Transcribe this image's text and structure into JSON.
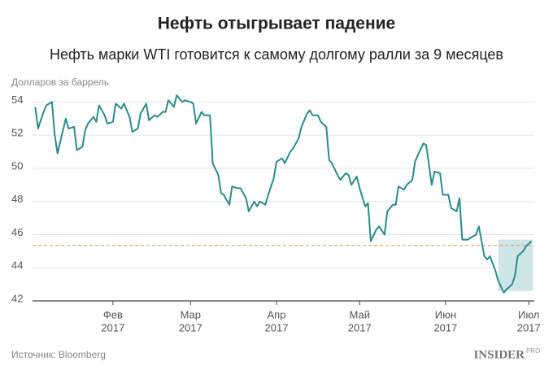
{
  "chart_data": {
    "type": "line",
    "title": "Нефть отыгрывает падение",
    "subtitle": "Нефть марки WTI готовится к самому долгому ралли за 9 месяцев",
    "y_axis_label": "Долларов за баррель",
    "source": "Источник: Bloomberg",
    "logo": {
      "name": "INSIDER",
      "suffix": "PRO"
    },
    "x": [
      4,
      5,
      7,
      8,
      10,
      11,
      12,
      14,
      15,
      16,
      18,
      19,
      21,
      22,
      23,
      25,
      26,
      27,
      29,
      30,
      32,
      33,
      35,
      36,
      38,
      39,
      41,
      42,
      44,
      45,
      47,
      48,
      50,
      51,
      52,
      54,
      55,
      57,
      58,
      60,
      61,
      62,
      64,
      65,
      67,
      68,
      70,
      71,
      72,
      74,
      75,
      77,
      78,
      80,
      81,
      83,
      84,
      85,
      87,
      88,
      90,
      91,
      93,
      94,
      96,
      97,
      99,
      100,
      102,
      103,
      104,
      106,
      107,
      109,
      110,
      111,
      113,
      114,
      116,
      117,
      118,
      120,
      121,
      123,
      124,
      125,
      127,
      128,
      130,
      131,
      133,
      134,
      135,
      137,
      138,
      140,
      141,
      142,
      144,
      145,
      147,
      148,
      150,
      151,
      153,
      154,
      156,
      157,
      158,
      160,
      161,
      163,
      164,
      166,
      167,
      168,
      170,
      171,
      173,
      174,
      176,
      177,
      178,
      180,
      181,
      183
    ],
    "series": [
      {
        "name": "WTI",
        "color": "#2a8c8c",
        "values": [
          53.7,
          52.4,
          53.4,
          53.8,
          54.0,
          52.0,
          50.9,
          52.3,
          53.0,
          52.4,
          52.5,
          51.1,
          51.3,
          52.3,
          52.7,
          53.1,
          52.8,
          53.8,
          53.2,
          52.7,
          52.8,
          53.9,
          53.6,
          53.9,
          53.1,
          52.2,
          52.4,
          53.3,
          53.9,
          52.9,
          53.2,
          53.1,
          53.4,
          53.4,
          54.1,
          53.7,
          54.4,
          54.0,
          54.1,
          54.0,
          53.9,
          52.7,
          53.4,
          53.2,
          53.2,
          50.3,
          49.6,
          48.5,
          48.4,
          47.8,
          48.9,
          48.8,
          48.8,
          48.2,
          47.4,
          48.0,
          47.7,
          48.0,
          47.8,
          48.4,
          49.4,
          50.4,
          50.6,
          50.3,
          51.0,
          51.2,
          51.8,
          52.5,
          53.3,
          53.5,
          53.2,
          53.2,
          52.8,
          52.5,
          50.5,
          50.3,
          49.6,
          49.3,
          49.7,
          49.6,
          49.0,
          49.5,
          48.8,
          47.7,
          47.9,
          45.6,
          46.3,
          46.5,
          46.0,
          47.4,
          47.8,
          47.8,
          48.9,
          48.7,
          49.0,
          49.3,
          50.4,
          50.8,
          51.5,
          51.4,
          49.0,
          49.8,
          49.7,
          48.4,
          48.4,
          47.6,
          47.4,
          48.2,
          45.7,
          45.7,
          45.8,
          46.0,
          46.5,
          44.7,
          44.5,
          44.7,
          43.8,
          43.2,
          42.5,
          42.7,
          43.0,
          43.5,
          44.7,
          45.0,
          45.3,
          45.6
        ]
      }
    ],
    "xlim": [
      3,
      184
    ],
    "xticks": [
      {
        "value": 32,
        "label": [
          "Фев",
          "2017"
        ]
      },
      {
        "value": 60,
        "label": [
          "Мар",
          "2017"
        ]
      },
      {
        "value": 91,
        "label": [
          "Апр",
          "2017"
        ]
      },
      {
        "value": 121,
        "label": [
          "Май",
          "2017"
        ]
      },
      {
        "value": 152,
        "label": [
          "Июн",
          "2017"
        ]
      },
      {
        "value": 182,
        "label": [
          "Июл",
          "2017"
        ]
      }
    ],
    "ylim": [
      42,
      55
    ],
    "yticks": [
      42,
      44,
      46,
      48,
      50,
      52,
      54
    ],
    "grid": true,
    "reference_line": {
      "value": 45.35,
      "color": "#e8a060"
    },
    "highlight": {
      "xlim": [
        171,
        183.5
      ],
      "ylim": [
        42.6,
        45.7
      ],
      "color": "#cde5e5"
    }
  }
}
